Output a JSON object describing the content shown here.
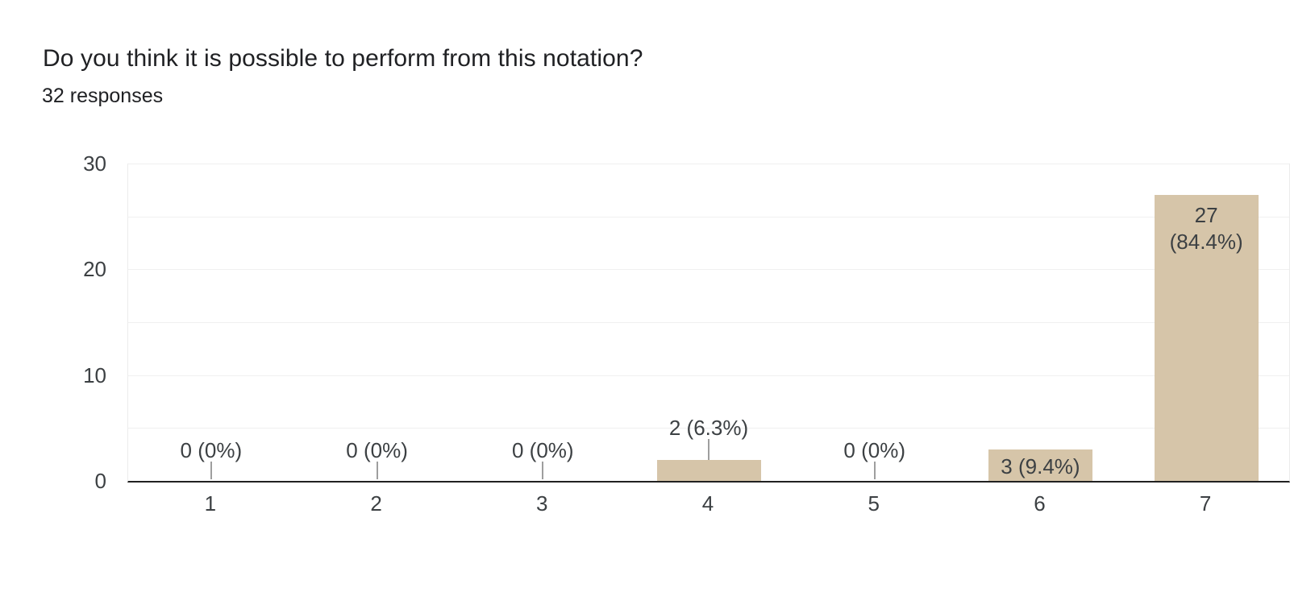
{
  "header": {
    "title": "Do you think it is possible to perform from this notation?",
    "responses": "32 responses"
  },
  "chart_data": {
    "type": "bar",
    "title": "Do you think it is possible to perform from this notation?",
    "subtitle": "32 responses",
    "categories": [
      "1",
      "2",
      "3",
      "4",
      "5",
      "6",
      "7"
    ],
    "values": [
      0,
      0,
      0,
      2,
      0,
      3,
      27
    ],
    "bar_labels": [
      [
        "0 (0%)"
      ],
      [
        "0 (0%)"
      ],
      [
        "0 (0%)"
      ],
      [
        "2 (6.3%)"
      ],
      [
        "0 (0%)"
      ],
      [
        "3 (9.4%)"
      ],
      [
        "27",
        "(84.4%)"
      ]
    ],
    "bar_label_placement": [
      "above-axis",
      "above-axis",
      "above-axis",
      "above-bar",
      "above-axis",
      "inside-bottom",
      "inside-top"
    ],
    "xlabel": "",
    "ylabel": "",
    "ylim": [
      0,
      30
    ],
    "yticks": [
      0,
      10,
      20,
      30
    ],
    "gridline_interval": 5,
    "grid": true,
    "legend": "none",
    "colors": {
      "bar": "#d6c5a9",
      "axis_line": "#212121",
      "gridline": "#f0f0f0",
      "tick_label": "#3c4043",
      "bar_label": "#3c4043",
      "leader_line": "#9e9e9e",
      "title_text": "#202124"
    }
  }
}
